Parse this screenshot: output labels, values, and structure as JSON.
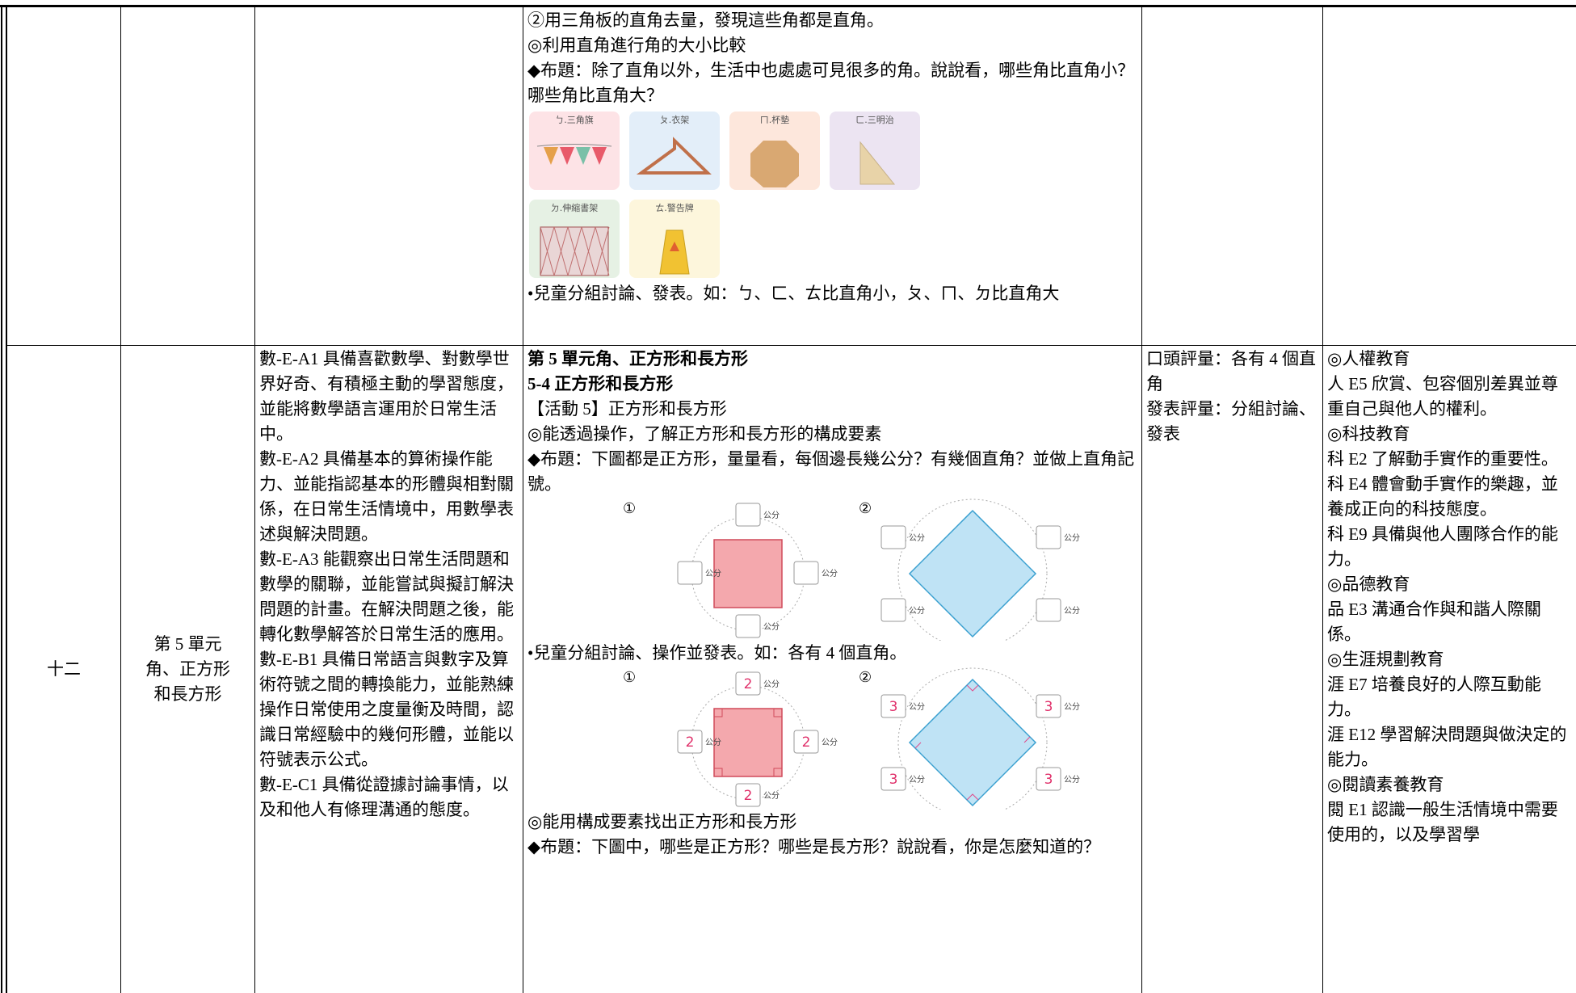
{
  "rows": [
    {
      "activity": {
        "lines_before": [
          "②用三角板的直角去量，發現這些角都是直角。",
          "◎利用直角進行角的大小比較",
          "◆布題：除了直角以外，生活中也處處可見很多的角。說說看，哪些角比直角小？哪些角比直角大？"
        ],
        "cards": [
          "ㄅ.三角旗",
          "ㄆ.衣架",
          "ㄇ.杯墊",
          "ㄈ.三明治",
          "ㄉ.伸縮書架",
          "ㄊ.警告牌"
        ],
        "lines_after": [
          "•兒童分組討論、發表。如：ㄅ、ㄈ、ㄊ比直角小，ㄆ、ㄇ、ㄉ比直角大"
        ]
      }
    },
    {
      "week": "十二",
      "unit": [
        "第 5 單元",
        "角、正方形",
        "和長方形"
      ],
      "competencies": [
        "數-E-A1 具備喜歡數學、對數學世界好奇、有積極主動的學習態度，並能將數學語言運用於日常生活中。",
        "數-E-A2 具備基本的算術操作能力、並能指認基本的形體與相對關係，在日常生活情境中，用數學表述與解決問題。",
        "數-E-A3 能觀察出日常生活問題和數學的關聯，並能嘗試與擬訂解決問題的計畫。在解決問題之後，能轉化數學解答於日常生活的應用。",
        "數-E-B1 具備日常語言與數字及算術符號之間的轉換能力，並能熟練操作日常使用之度量衡及時間，認識日常經驗中的幾何形體，並能以符號表示公式。",
        "數-E-C1 具備從證據討論事情，以及和他人有條理溝通的態度。"
      ],
      "activity": {
        "unit_title": "第 5 單元角、正方形和長方形",
        "section": "5-4 正方形和長方形",
        "lines_before": [
          "【活動 5】正方形和長方形",
          "◎能透過操作，了解正方形和長方形的構成要素",
          "◆布題：下圖都是正方形，量量看，每個邊長幾公分？有幾個直角？並做上直角記號。"
        ],
        "figure1": {
          "markers": [
            "①",
            "②"
          ],
          "unit": "公分"
        },
        "middle": "•兒童分組討論、操作並發表。如：各有 4 個直角。",
        "figure2": {
          "markers": [
            "①",
            "②"
          ],
          "unit": "公分",
          "values": [
            2,
            3
          ]
        },
        "lines_after": [
          "◎能用構成要素找出正方形和長方形",
          "◆布題：下圖中，哪些是正方形？哪些是長方形？說說看，你是怎麼知道的？"
        ]
      },
      "assessment": [
        "口頭評量：各有 4 個直角",
        "發表評量：分組討論、發表"
      ],
      "issues": [
        "◎人權教育",
        "人 E5 欣賞、包容個別差異並尊重自己與他人的權利。",
        "◎科技教育",
        "科 E2 了解動手實作的重要性。",
        "科 E4 體會動手實作的樂趣，並養成正向的科技態度。",
        "科 E9 具備與他人團隊合作的能力。",
        "◎品德教育",
        "品 E3 溝通合作與和諧人際關係。",
        "◎生涯規劃教育",
        "涯 E7 培養良好的人際互動能力。",
        "涯 E12 學習解決問題與做決定的能力。",
        "◎閱讀素養教育",
        "閱 E1 認識一般生活情境中需要使用的，以及學習學"
      ]
    }
  ]
}
